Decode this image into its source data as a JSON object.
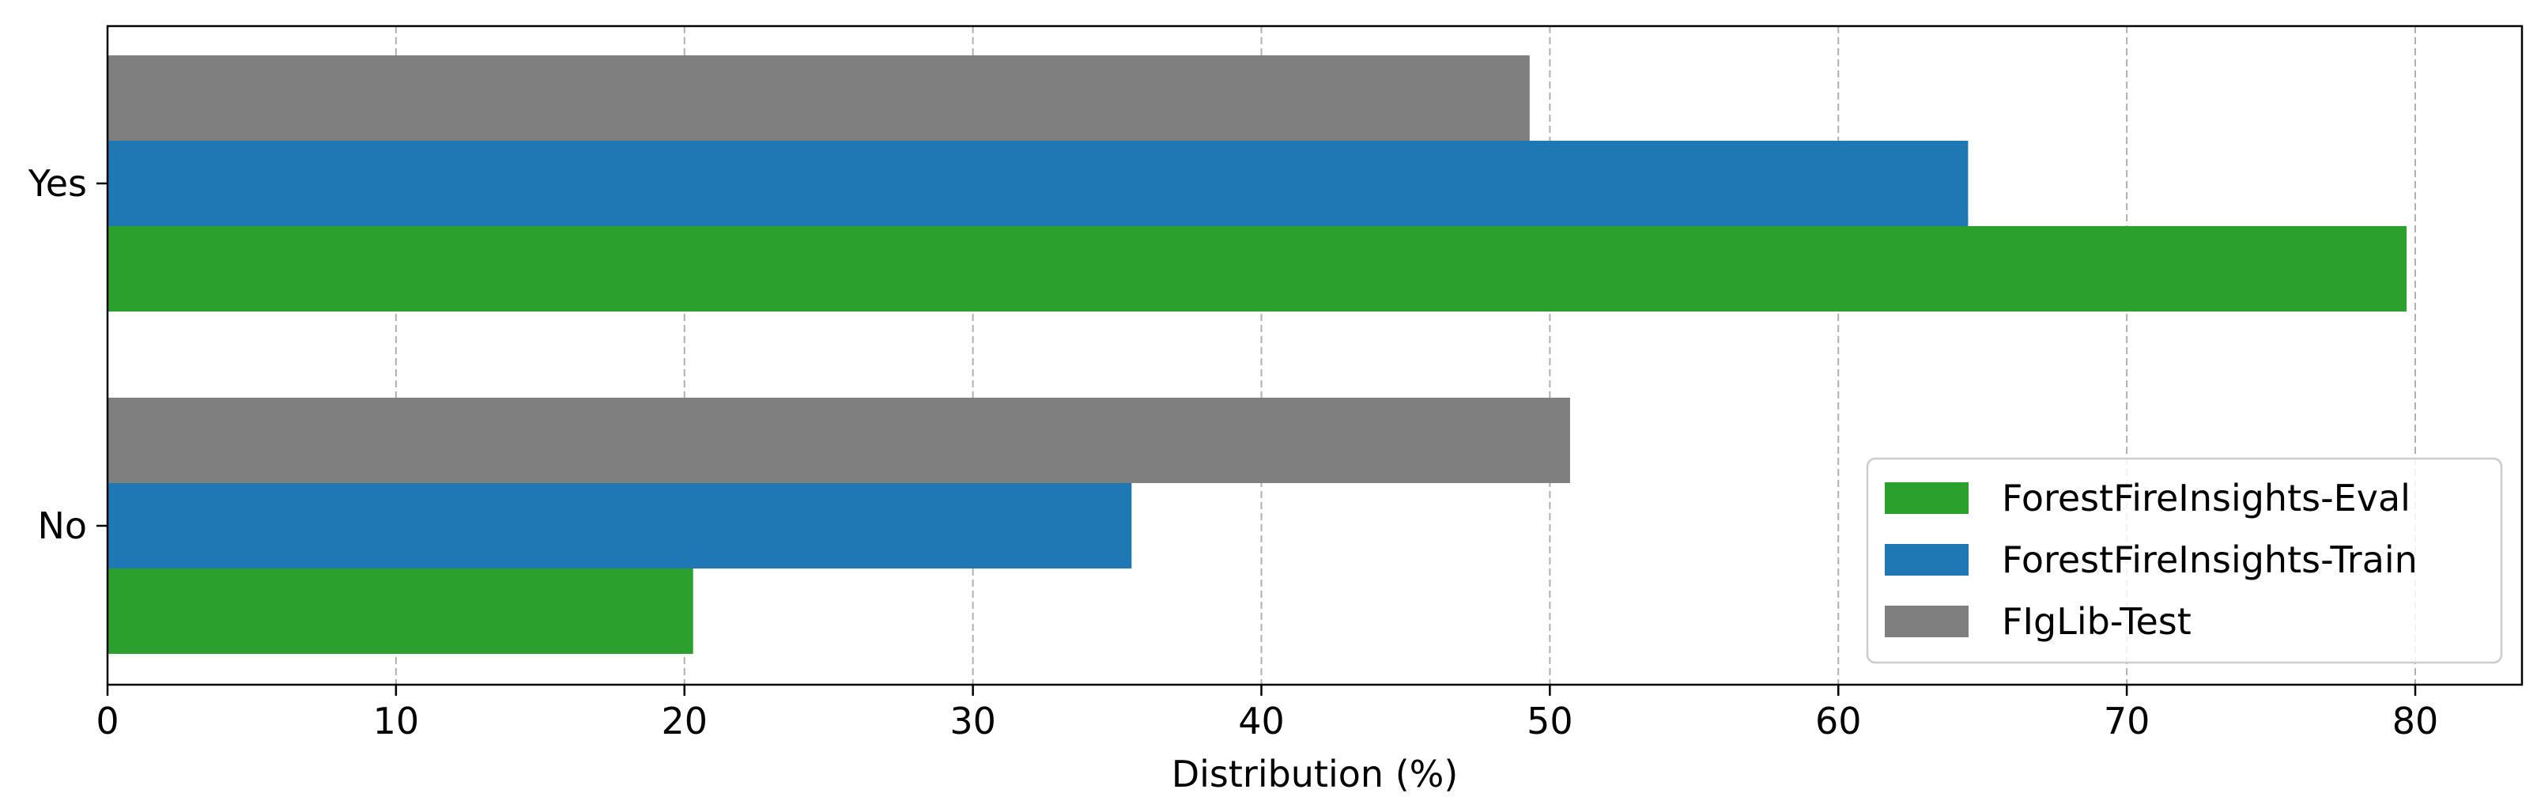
{
  "chart_data": {
    "type": "bar",
    "orientation": "horizontal",
    "categories": [
      "Yes",
      "No"
    ],
    "series": [
      {
        "name": "ForestFireInsights-Eval",
        "color": "#2ca02c",
        "values": [
          79.7,
          20.3
        ]
      },
      {
        "name": "ForestFireInsights-Train",
        "color": "#1f77b4",
        "values": [
          64.5,
          35.5
        ]
      },
      {
        "name": "FIgLib-Test",
        "color": "#7f7f7f",
        "values": [
          49.3,
          50.7
        ]
      }
    ],
    "title": "",
    "xlabel": "Distribution (%)",
    "ylabel": "",
    "xlim": [
      0,
      83.7
    ],
    "xticks": [
      0,
      10,
      20,
      30,
      40,
      50,
      60,
      70,
      80
    ],
    "grid": {
      "x": true,
      "y": false,
      "style": "dashed"
    },
    "legend_position": "lower-right",
    "legend_order": [
      "ForestFireInsights-Eval",
      "ForestFireInsights-Train",
      "FIgLib-Test"
    ]
  }
}
